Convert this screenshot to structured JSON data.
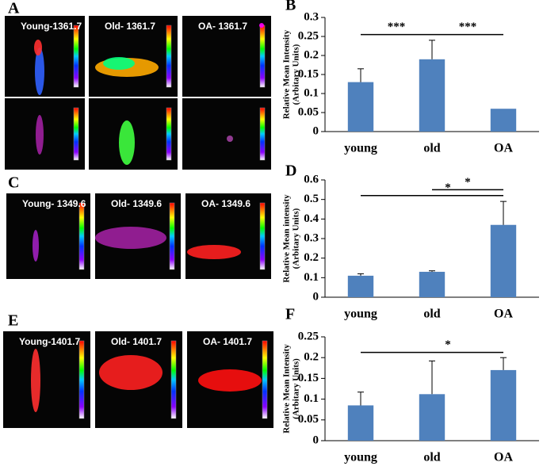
{
  "images": [
    {
      "label": "A",
      "titles": [
        "Young-1361.7",
        "Old- 1361.7",
        "OA- 1361.7"
      ]
    },
    {
      "label": "C",
      "titles": [
        "Young- 1349.6",
        "Old- 1349.6",
        "OA- 1349.6"
      ]
    },
    {
      "label": "E",
      "titles": [
        "Young-1401.7",
        "Old- 1401.7",
        "OA- 1401.7"
      ]
    }
  ],
  "chart_data": [
    {
      "type": "bar",
      "panel_label": "B",
      "y_label": [
        "Relative Mean Intensity",
        "(Arbitary Units)"
      ],
      "categories": [
        "young",
        "old",
        "OA"
      ],
      "values": [
        0.13,
        0.19,
        0.06
      ],
      "errors": [
        0.035,
        0.05,
        null
      ],
      "color": "#4f81bd",
      "ylim": [
        0,
        0.3
      ],
      "yticks": [
        0,
        0.05,
        0.1,
        0.15,
        0.2,
        0.25,
        0.3
      ],
      "annotations": [
        {
          "text": "***",
          "pair": [
            0,
            1
          ]
        },
        {
          "text": "***",
          "pair": [
            1,
            2
          ]
        }
      ]
    },
    {
      "type": "bar",
      "panel_label": "D",
      "y_label": [
        "Relative Mean intensity",
        "(Arbitary Units)"
      ],
      "categories": [
        "young",
        "old",
        "OA"
      ],
      "values": [
        0.11,
        0.13,
        0.37
      ],
      "errors": [
        0.01,
        0.005,
        0.12
      ],
      "color": "#4f81bd",
      "ylim": [
        0,
        0.6
      ],
      "yticks": [
        0,
        0.1,
        0.2,
        0.3,
        0.4,
        0.5,
        0.6
      ],
      "annotations": [
        {
          "text": "*",
          "pair": [
            0,
            2
          ]
        },
        {
          "text": "*",
          "pair": [
            1,
            2
          ]
        }
      ]
    },
    {
      "type": "bar",
      "panel_label": "F",
      "y_label": [
        "Relative Mean Intensity",
        "(Arbitary Units)"
      ],
      "categories": [
        "young",
        "old",
        "OA"
      ],
      "values": [
        0.085,
        0.112,
        0.17
      ],
      "errors": [
        0.032,
        0.08,
        0.03
      ],
      "color": "#4f81bd",
      "ylim": [
        0,
        0.25
      ],
      "yticks": [
        0,
        0.05,
        0.1,
        0.15,
        0.2,
        0.25
      ],
      "annotations": [
        {
          "text": "*",
          "pair": [
            0,
            2
          ]
        }
      ]
    }
  ]
}
